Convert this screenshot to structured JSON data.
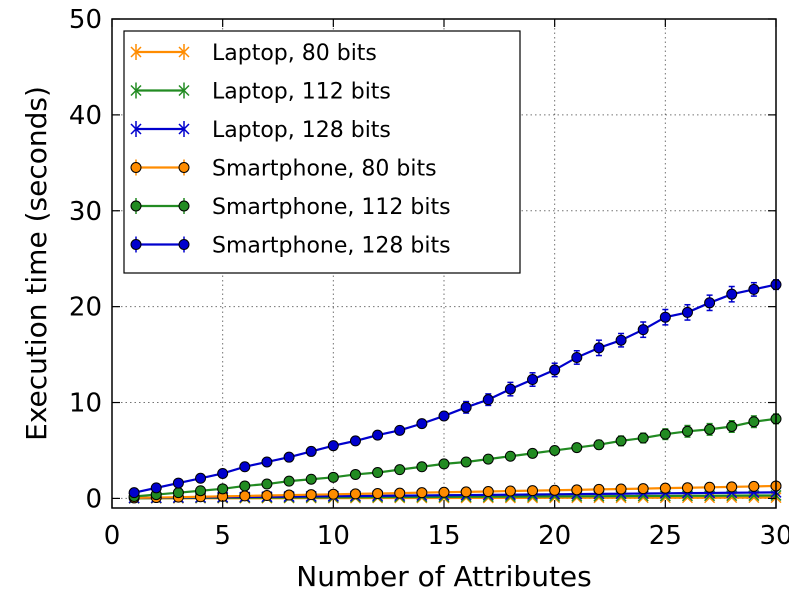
{
  "chart_data": {
    "type": "line",
    "title": "",
    "xlabel": "Number of Attributes",
    "ylabel": "Execution time (seconds)",
    "xlim": [
      0,
      30
    ],
    "ylim": [
      -1,
      50
    ],
    "xticks": [
      0,
      5,
      10,
      15,
      20,
      25,
      30
    ],
    "yticks": [
      0,
      10,
      20,
      30,
      40,
      50
    ],
    "grid": true,
    "legend_position": "top-left",
    "x": [
      1,
      2,
      3,
      4,
      5,
      6,
      7,
      8,
      9,
      10,
      11,
      12,
      13,
      14,
      15,
      16,
      17,
      18,
      19,
      20,
      21,
      22,
      23,
      24,
      25,
      26,
      27,
      28,
      29,
      30
    ],
    "series": [
      {
        "name": "Laptop, 80 bits",
        "color": "#ff8c00",
        "marker": "x",
        "values": [
          0.01,
          0.01,
          0.01,
          0.02,
          0.02,
          0.02,
          0.02,
          0.03,
          0.03,
          0.03,
          0.03,
          0.04,
          0.04,
          0.04,
          0.04,
          0.05,
          0.05,
          0.05,
          0.05,
          0.06,
          0.06,
          0.06,
          0.06,
          0.07,
          0.07,
          0.07,
          0.07,
          0.08,
          0.08,
          0.08
        ],
        "errors": [
          0,
          0,
          0,
          0,
          0,
          0,
          0,
          0,
          0,
          0,
          0,
          0,
          0,
          0,
          0,
          0,
          0,
          0,
          0,
          0,
          0,
          0,
          0,
          0,
          0,
          0,
          0,
          0,
          0,
          0
        ]
      },
      {
        "name": "Laptop, 112 bits",
        "color": "#228b22",
        "marker": "x",
        "values": [
          0.02,
          0.03,
          0.04,
          0.05,
          0.06,
          0.07,
          0.08,
          0.09,
          0.1,
          0.11,
          0.12,
          0.13,
          0.14,
          0.15,
          0.16,
          0.17,
          0.18,
          0.19,
          0.2,
          0.21,
          0.22,
          0.23,
          0.24,
          0.25,
          0.26,
          0.27,
          0.28,
          0.29,
          0.3,
          0.31
        ],
        "errors": [
          0,
          0,
          0,
          0,
          0,
          0,
          0,
          0,
          0,
          0,
          0,
          0,
          0,
          0,
          0,
          0,
          0,
          0,
          0,
          0,
          0,
          0,
          0,
          0,
          0,
          0,
          0,
          0,
          0,
          0
        ]
      },
      {
        "name": "Laptop, 128 bits",
        "color": "#0000cd",
        "marker": "x",
        "values": [
          0.05,
          0.07,
          0.09,
          0.11,
          0.13,
          0.15,
          0.17,
          0.19,
          0.21,
          0.23,
          0.25,
          0.27,
          0.29,
          0.31,
          0.33,
          0.35,
          0.37,
          0.39,
          0.41,
          0.43,
          0.45,
          0.47,
          0.49,
          0.51,
          0.53,
          0.55,
          0.57,
          0.59,
          0.61,
          0.63
        ],
        "errors": [
          0,
          0,
          0,
          0,
          0,
          0,
          0,
          0,
          0,
          0,
          0,
          0,
          0,
          0,
          0,
          0,
          0,
          0,
          0,
          0,
          0,
          0,
          0,
          0,
          0,
          0,
          0,
          0,
          0,
          0
        ]
      },
      {
        "name": "Smartphone, 80 bits",
        "color": "#ff8c00",
        "marker": "o",
        "values": [
          0.05,
          0.09,
          0.13,
          0.17,
          0.21,
          0.26,
          0.3,
          0.35,
          0.39,
          0.43,
          0.47,
          0.51,
          0.55,
          0.6,
          0.64,
          0.68,
          0.72,
          0.77,
          0.81,
          0.85,
          0.89,
          0.94,
          0.98,
          1.02,
          1.07,
          1.11,
          1.16,
          1.2,
          1.25,
          1.3
        ],
        "errors": [
          0.05,
          0.05,
          0.05,
          0.05,
          0.05,
          0.05,
          0.05,
          0.05,
          0.05,
          0.05,
          0.05,
          0.05,
          0.05,
          0.05,
          0.05,
          0.05,
          0.05,
          0.05,
          0.05,
          0.05,
          0.05,
          0.05,
          0.05,
          0.05,
          0.05,
          0.05,
          0.05,
          0.05,
          0.05,
          0.05
        ]
      },
      {
        "name": "Smartphone, 112 bits",
        "color": "#228b22",
        "marker": "o",
        "values": [
          0.2,
          0.4,
          0.6,
          0.8,
          1.0,
          1.3,
          1.5,
          1.8,
          2.0,
          2.2,
          2.5,
          2.7,
          3.0,
          3.3,
          3.6,
          3.8,
          4.1,
          4.4,
          4.7,
          5.0,
          5.3,
          5.6,
          6.0,
          6.3,
          6.7,
          7.0,
          7.2,
          7.5,
          8.0,
          8.3
        ],
        "errors": [
          0.1,
          0.1,
          0.1,
          0.1,
          0.15,
          0.15,
          0.15,
          0.15,
          0.2,
          0.2,
          0.2,
          0.2,
          0.25,
          0.25,
          0.25,
          0.3,
          0.3,
          0.35,
          0.35,
          0.4,
          0.4,
          0.45,
          0.5,
          0.5,
          0.55,
          0.6,
          0.6,
          0.6,
          0.6,
          0.5
        ]
      },
      {
        "name": "Smartphone, 128 bits",
        "color": "#0000cd",
        "marker": "o",
        "values": [
          0.6,
          1.1,
          1.6,
          2.1,
          2.6,
          3.3,
          3.8,
          4.3,
          4.9,
          5.5,
          6.0,
          6.6,
          7.1,
          7.8,
          8.6,
          9.5,
          10.3,
          11.4,
          12.4,
          13.4,
          14.7,
          15.7,
          16.5,
          17.6,
          18.9,
          19.4,
          20.4,
          21.3,
          21.8,
          22.3
        ],
        "errors": [
          0.2,
          0.2,
          0.2,
          0.2,
          0.2,
          0.25,
          0.25,
          0.25,
          0.3,
          0.3,
          0.3,
          0.3,
          0.3,
          0.35,
          0.4,
          0.6,
          0.6,
          0.7,
          0.7,
          0.7,
          0.7,
          0.8,
          0.7,
          0.8,
          0.8,
          0.8,
          0.8,
          0.8,
          0.7,
          0.5
        ]
      }
    ]
  }
}
